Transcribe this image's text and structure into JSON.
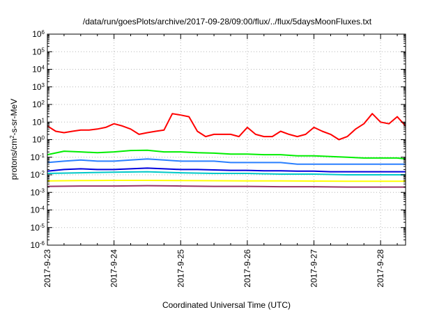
{
  "chart_data": {
    "type": "line",
    "title": "/data/run/goesPlots/archive/2017-09-28/09:00/flux/../flux/5daysMoonFluxes.txt",
    "xlabel": "Coordinated Universal Time (UTC)",
    "ylabel": {
      "pre": "protons/cm",
      "sup": "2",
      "post": "-s-sr-MeV"
    },
    "yscale": "log",
    "ylim": [
      1e-06,
      1000000.0
    ],
    "xlim": [
      "2017-09-23",
      "2017-09-28 09:00"
    ],
    "grid": true,
    "y_ticks": [
      {
        "base": "10",
        "exp": "6"
      },
      {
        "base": "10",
        "exp": "5"
      },
      {
        "base": "10",
        "exp": "4"
      },
      {
        "base": "10",
        "exp": "3"
      },
      {
        "base": "10",
        "exp": "2"
      },
      {
        "base": "10",
        "exp": "1"
      },
      {
        "base": "10",
        "exp": "0"
      },
      {
        "base": "10",
        "exp": "-1"
      },
      {
        "base": "10",
        "exp": "-2"
      },
      {
        "base": "10",
        "exp": "-3"
      },
      {
        "base": "10",
        "exp": "-4"
      },
      {
        "base": "10",
        "exp": "-5"
      },
      {
        "base": "10",
        "exp": "-6"
      }
    ],
    "x_ticks": [
      "2017-9-23",
      "2017-9-24",
      "2017-9-25",
      "2017-9-26",
      "2017-9-27",
      "2017-9-28"
    ],
    "series": [
      {
        "color": "#ff0000",
        "x": [
          "2017-09-23 00:00",
          "2017-09-23 03:00",
          "2017-09-23 06:00",
          "2017-09-23 09:00",
          "2017-09-23 12:00",
          "2017-09-23 15:00",
          "2017-09-23 18:00",
          "2017-09-23 21:00",
          "2017-09-24 00:00",
          "2017-09-24 03:00",
          "2017-09-24 06:00",
          "2017-09-24 09:00",
          "2017-09-24 12:00",
          "2017-09-24 15:00",
          "2017-09-24 18:00",
          "2017-09-24 21:00",
          "2017-09-25 00:00",
          "2017-09-25 03:00",
          "2017-09-25 06:00",
          "2017-09-25 09:00",
          "2017-09-25 12:00",
          "2017-09-25 15:00",
          "2017-09-25 18:00",
          "2017-09-25 21:00",
          "2017-09-26 00:00",
          "2017-09-26 03:00",
          "2017-09-26 06:00",
          "2017-09-26 09:00",
          "2017-09-26 12:00",
          "2017-09-26 15:00",
          "2017-09-26 18:00",
          "2017-09-26 21:00",
          "2017-09-27 00:00",
          "2017-09-27 03:00",
          "2017-09-27 06:00",
          "2017-09-27 09:00",
          "2017-09-27 12:00",
          "2017-09-27 15:00",
          "2017-09-27 18:00",
          "2017-09-27 21:00",
          "2017-09-28 00:00",
          "2017-09-28 03:00",
          "2017-09-28 06:00",
          "2017-09-28 09:00"
        ],
        "values": [
          6,
          3,
          2.5,
          3,
          3.5,
          3.5,
          4,
          5,
          8,
          6,
          4,
          2,
          2.5,
          3,
          3.5,
          30,
          25,
          20,
          3,
          1.5,
          2,
          2,
          2,
          1.5,
          5,
          2,
          1.5,
          1.5,
          3,
          2,
          1.5,
          2,
          5,
          3,
          2,
          1,
          1.5,
          4,
          8,
          30,
          10,
          8,
          20,
          6
        ]
      },
      {
        "color": "#00ee00",
        "x": [
          "2017-09-23 00:00",
          "2017-09-23 06:00",
          "2017-09-23 12:00",
          "2017-09-23 18:00",
          "2017-09-24 00:00",
          "2017-09-24 06:00",
          "2017-09-24 12:00",
          "2017-09-24 18:00",
          "2017-09-25 00:00",
          "2017-09-25 06:00",
          "2017-09-25 12:00",
          "2017-09-25 18:00",
          "2017-09-26 00:00",
          "2017-09-26 06:00",
          "2017-09-26 12:00",
          "2017-09-26 18:00",
          "2017-09-27 00:00",
          "2017-09-27 06:00",
          "2017-09-27 12:00",
          "2017-09-27 18:00",
          "2017-09-28 00:00",
          "2017-09-28 06:00",
          "2017-09-28 09:00"
        ],
        "values": [
          0.14,
          0.22,
          0.2,
          0.18,
          0.2,
          0.24,
          0.25,
          0.2,
          0.2,
          0.18,
          0.17,
          0.15,
          0.15,
          0.14,
          0.14,
          0.12,
          0.12,
          0.11,
          0.1,
          0.09,
          0.09,
          0.09,
          0.08
        ]
      },
      {
        "color": "#2a7fff",
        "x": [
          "2017-09-23 00:00",
          "2017-09-23 06:00",
          "2017-09-23 12:00",
          "2017-09-23 18:00",
          "2017-09-24 00:00",
          "2017-09-24 06:00",
          "2017-09-24 12:00",
          "2017-09-24 18:00",
          "2017-09-25 00:00",
          "2017-09-25 06:00",
          "2017-09-25 12:00",
          "2017-09-25 18:00",
          "2017-09-26 00:00",
          "2017-09-26 06:00",
          "2017-09-26 12:00",
          "2017-09-26 18:00",
          "2017-09-27 00:00",
          "2017-09-27 06:00",
          "2017-09-27 12:00",
          "2017-09-27 18:00",
          "2017-09-28 00:00",
          "2017-09-28 06:00",
          "2017-09-28 09:00"
        ],
        "values": [
          0.05,
          0.06,
          0.07,
          0.06,
          0.06,
          0.07,
          0.08,
          0.07,
          0.06,
          0.06,
          0.06,
          0.05,
          0.05,
          0.05,
          0.05,
          0.04,
          0.04,
          0.04,
          0.04,
          0.04,
          0.04,
          0.04,
          0.04
        ]
      },
      {
        "color": "#00c8c8",
        "x": [
          "2017-09-23 00:00",
          "2017-09-23 12:00",
          "2017-09-24 00:00",
          "2017-09-24 12:00",
          "2017-09-25 00:00",
          "2017-09-25 12:00",
          "2017-09-26 00:00",
          "2017-09-26 12:00",
          "2017-09-27 00:00",
          "2017-09-27 12:00",
          "2017-09-28 00:00",
          "2017-09-28 09:00"
        ],
        "values": [
          0.012,
          0.013,
          0.014,
          0.015,
          0.013,
          0.012,
          0.012,
          0.011,
          0.011,
          0.01,
          0.01,
          0.01
        ]
      },
      {
        "color": "#0000dd",
        "x": [
          "2017-09-23 00:00",
          "2017-09-23 06:00",
          "2017-09-23 12:00",
          "2017-09-23 18:00",
          "2017-09-24 00:00",
          "2017-09-24 06:00",
          "2017-09-24 12:00",
          "2017-09-24 18:00",
          "2017-09-25 00:00",
          "2017-09-25 06:00",
          "2017-09-25 12:00",
          "2017-09-25 18:00",
          "2017-09-26 00:00",
          "2017-09-26 06:00",
          "2017-09-26 12:00",
          "2017-09-26 18:00",
          "2017-09-27 00:00",
          "2017-09-27 06:00",
          "2017-09-27 12:00",
          "2017-09-27 18:00",
          "2017-09-28 00:00",
          "2017-09-28 06:00",
          "2017-09-28 09:00"
        ],
        "values": [
          0.016,
          0.02,
          0.022,
          0.02,
          0.02,
          0.022,
          0.024,
          0.022,
          0.02,
          0.02,
          0.019,
          0.018,
          0.018,
          0.017,
          0.017,
          0.016,
          0.016,
          0.015,
          0.015,
          0.015,
          0.015,
          0.015,
          0.015
        ]
      },
      {
        "color": "#ffff00",
        "x": [
          "2017-09-23 00:00",
          "2017-09-23 12:00",
          "2017-09-24 00:00",
          "2017-09-24 12:00",
          "2017-09-25 00:00",
          "2017-09-25 12:00",
          "2017-09-26 00:00",
          "2017-09-26 12:00",
          "2017-09-27 00:00",
          "2017-09-27 12:00",
          "2017-09-28 00:00",
          "2017-09-28 09:00"
        ],
        "values": [
          0.0045,
          0.0047,
          0.0048,
          0.0048,
          0.0047,
          0.0046,
          0.0045,
          0.0045,
          0.0044,
          0.0043,
          0.0043,
          0.0043
        ]
      },
      {
        "color": "#993366",
        "x": [
          "2017-09-23 00:00",
          "2017-09-23 12:00",
          "2017-09-24 00:00",
          "2017-09-24 12:00",
          "2017-09-25 00:00",
          "2017-09-25 12:00",
          "2017-09-26 00:00",
          "2017-09-26 12:00",
          "2017-09-27 00:00",
          "2017-09-27 12:00",
          "2017-09-28 00:00",
          "2017-09-28 09:00"
        ],
        "values": [
          0.0022,
          0.0023,
          0.0023,
          0.0024,
          0.0023,
          0.0022,
          0.0022,
          0.0021,
          0.0021,
          0.002,
          0.002,
          0.002
        ]
      }
    ]
  }
}
